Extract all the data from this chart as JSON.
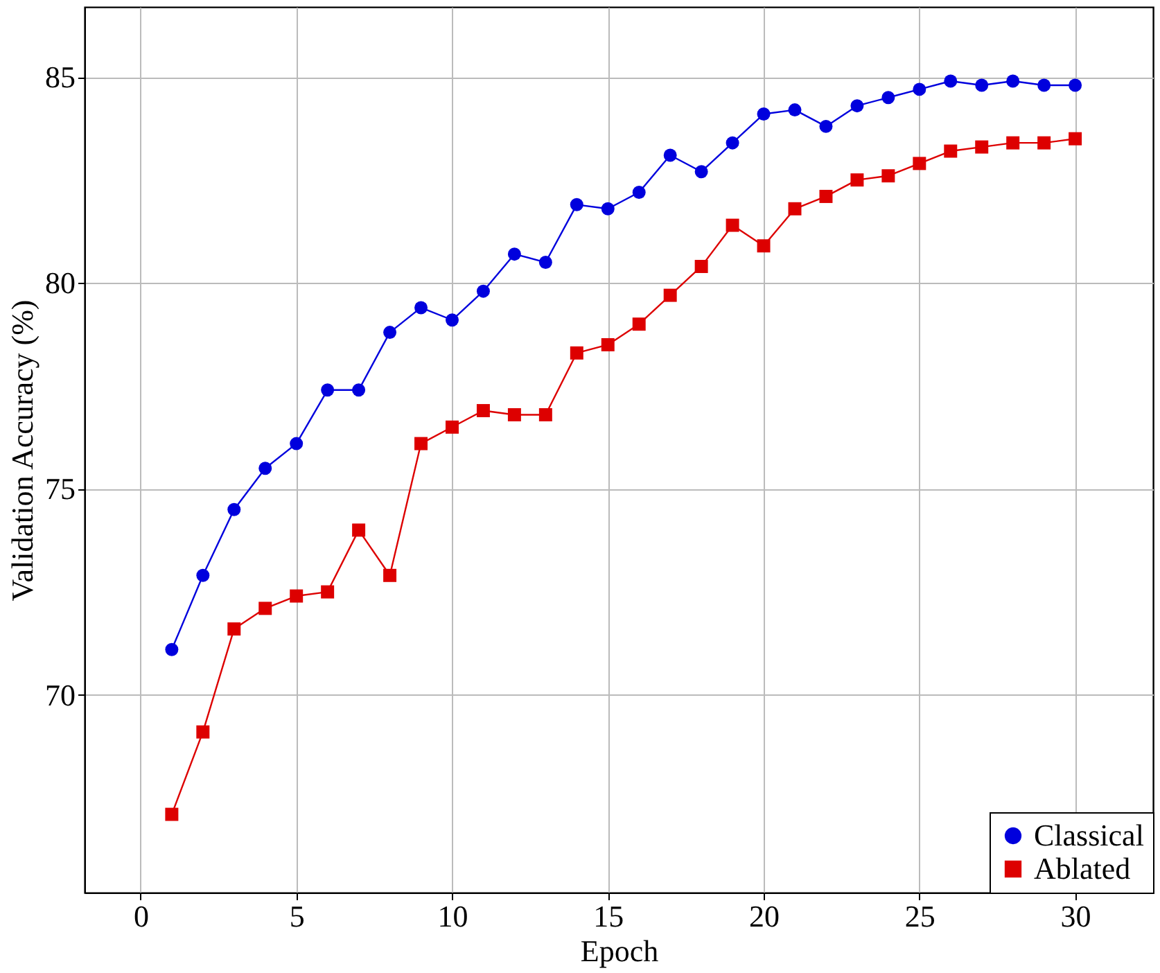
{
  "chart_data": {
    "type": "line",
    "xlabel": "Epoch",
    "ylabel": "Validation Accuracy (%)",
    "x": [
      1,
      2,
      3,
      4,
      5,
      6,
      7,
      8,
      9,
      10,
      11,
      12,
      13,
      14,
      15,
      16,
      17,
      18,
      19,
      20,
      21,
      22,
      23,
      24,
      25,
      26,
      27,
      28,
      29,
      30
    ],
    "series": [
      {
        "name": "Classical",
        "color": "#0000dd",
        "marker": "circle",
        "values": [
          71.1,
          72.9,
          74.5,
          75.5,
          76.1,
          77.4,
          77.4,
          78.8,
          79.4,
          79.1,
          79.8,
          80.7,
          80.5,
          81.9,
          81.8,
          82.2,
          83.1,
          82.7,
          83.4,
          84.1,
          84.2,
          83.8,
          84.3,
          84.5,
          84.7,
          84.9,
          84.8,
          84.9,
          84.8,
          84.8
        ]
      },
      {
        "name": "Ablated",
        "color": "#dd0000",
        "marker": "square",
        "values": [
          67.1,
          69.1,
          71.6,
          72.1,
          72.4,
          72.5,
          74.0,
          72.9,
          76.1,
          76.5,
          76.9,
          76.8,
          76.8,
          78.3,
          78.5,
          79.0,
          79.7,
          80.4,
          81.4,
          80.9,
          81.8,
          82.1,
          82.5,
          82.6,
          82.9,
          83.2,
          83.3,
          83.4,
          83.4,
          83.5
        ]
      }
    ],
    "xlim": [
      -1.8,
      32.5
    ],
    "ylim": [
      65.2,
      86.7
    ],
    "xticks": [
      0,
      5,
      10,
      15,
      20,
      25,
      30
    ],
    "yticks": [
      70,
      75,
      80,
      85
    ],
    "grid": true,
    "legend": "bottom right",
    "line_style": "solid"
  }
}
